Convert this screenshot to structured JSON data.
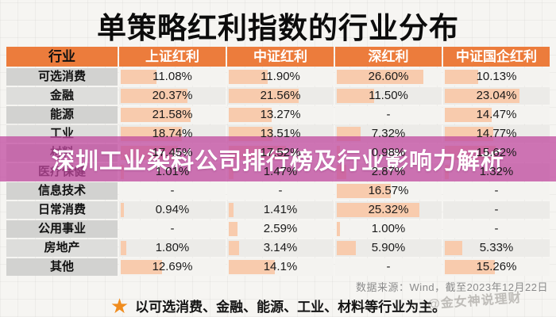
{
  "title": "单策略红利指数的行业分布",
  "overlay": {
    "text": "深圳工业染料公司排行榜及行业影响力解析"
  },
  "table": {
    "columns": [
      "行业",
      "上证红利",
      "中证红利",
      "深红利",
      "中证国企红利"
    ],
    "rows": [
      {
        "industry": "可选消费",
        "values": [
          "11.08%",
          "11.90%",
          "26.60%",
          "10.13%"
        ]
      },
      {
        "industry": "金融",
        "values": [
          "20.37%",
          "21.56%",
          "11.50%",
          "23.04%"
        ]
      },
      {
        "industry": "能源",
        "values": [
          "21.58%",
          "13.27%",
          "-",
          "14.47%"
        ]
      },
      {
        "industry": "工业",
        "values": [
          "18.74%",
          "13.51%",
          "7.32%",
          "14.77%"
        ]
      },
      {
        "industry": "材料",
        "values": [
          "17.45%",
          "17.52%",
          "0.98%",
          "15.62%"
        ]
      },
      {
        "industry": "医疗保健",
        "values": [
          "1.01%",
          "1.47%",
          "2.87%",
          "1.32%"
        ]
      },
      {
        "industry": "信息技术",
        "values": [
          "-",
          "-",
          "16.57%",
          "-"
        ]
      },
      {
        "industry": "日常消费",
        "values": [
          "0.94%",
          "1.41%",
          "25.32%",
          "-"
        ]
      },
      {
        "industry": "公用事业",
        "values": [
          "-",
          "2.59%",
          "1.00%",
          "-"
        ]
      },
      {
        "industry": "房地产",
        "values": [
          "1.80%",
          "3.14%",
          "5.90%",
          "5.33%"
        ]
      },
      {
        "industry": "其他",
        "values": [
          "12.69%",
          "14.1%",
          "-",
          "15.26%"
        ]
      }
    ]
  },
  "footer": {
    "source": "数据来源：Wind，截至2023年12月22日",
    "star_icon": "★",
    "highlight": "以可选消费、金融、能源、工业、材料等行业为主。",
    "watermark": "@金女神说理财"
  },
  "colors": {
    "header_bg": "#ec7c3c",
    "bar_fill": "#f8cbad",
    "overlay_magenta": "#c0489f",
    "star_orange": "#f08c1e"
  },
  "chart_data": {
    "type": "table",
    "title": "单策略红利指数的行业分布",
    "columns": [
      "行业",
      "上证红利",
      "中证红利",
      "深红利",
      "中证国企红利"
    ],
    "rows": [
      [
        "可选消费",
        "11.08%",
        "11.90%",
        "26.60%",
        "10.13%"
      ],
      [
        "金融",
        "20.37%",
        "21.56%",
        "11.50%",
        "23.04%"
      ],
      [
        "能源",
        "21.58%",
        "13.27%",
        "-",
        "14.47%"
      ],
      [
        "工业",
        "18.74%",
        "13.51%",
        "7.32%",
        "14.77%"
      ],
      [
        "材料",
        "17.45%",
        "17.52%",
        "0.98%",
        "15.62%"
      ],
      [
        "医疗保健",
        "1.01%",
        "1.47%",
        "2.87%",
        "1.32%"
      ],
      [
        "信息技术",
        "-",
        "-",
        "16.57%",
        "-"
      ],
      [
        "日常消费",
        "0.94%",
        "1.41%",
        "25.32%",
        "-"
      ],
      [
        "公用事业",
        "-",
        "2.59%",
        "1.00%",
        "-"
      ],
      [
        "房地产",
        "1.80%",
        "3.14%",
        "5.90%",
        "5.33%"
      ],
      [
        "其他",
        "12.69%",
        "14.1%",
        "-",
        "15.26%"
      ]
    ],
    "bar_encoding": "cell background bar width proportional to percentage value",
    "source": "数据来源：Wind，截至2023年12月22日"
  }
}
